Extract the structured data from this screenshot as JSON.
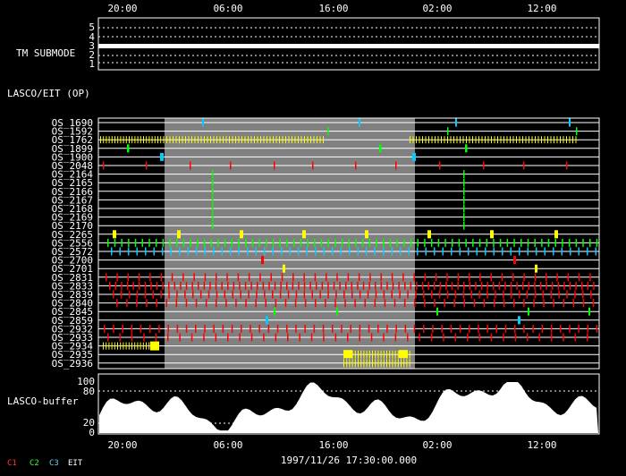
{
  "time_axis": {
    "top_ticks": [
      "20:00",
      "06:00",
      "16:00",
      "02:00",
      "12:00"
    ],
    "bottom_ticks": [
      "20:00",
      "06:00",
      "16:00",
      "02:00",
      "12:00"
    ],
    "timestamp": "1997/11/26 17:30:00.000"
  },
  "submode_panel": {
    "label": "TM SUBMODE",
    "ticks": [
      "5",
      "4",
      "3",
      "2",
      "1"
    ]
  },
  "lasco_panel": {
    "title": "LASCO/EIT (OP)",
    "rows": [
      "OS_1690",
      "OS_1592",
      "OS_1762",
      "OS_1899",
      "OS_1900",
      "OS_2048",
      "OS_2164",
      "OS_2165",
      "OS_2166",
      "OS_2167",
      "OS_2168",
      "OS_2169",
      "OS_2170",
      "OS_2265",
      "OS_2556",
      "OS_2572",
      "OS_2700",
      "OS_2701",
      "OS_2831",
      "OS_2833",
      "OS_2839",
      "OS_2840",
      "OS_2845",
      "OS_2859",
      "OS_2932",
      "OS_2933",
      "OS_2934",
      "OS_2935",
      "OS_2936"
    ]
  },
  "buffer_panel": {
    "label": "LASCO-buffer",
    "ticks": [
      "100",
      "80",
      "20",
      "0"
    ]
  },
  "legend": [
    {
      "label": "C1",
      "color": "#ff3333"
    },
    {
      "label": "C2",
      "color": "#33ff33"
    },
    {
      "label": "C3",
      "color": "#66ccff"
    },
    {
      "label": "EIT",
      "color": "#ffffff"
    }
  ],
  "colors": {
    "background": "#000000",
    "shade": "#808080",
    "line": "#ffffff",
    "yellow": "#ffff00",
    "red": "#ff0000",
    "green": "#00ff00",
    "cyan": "#00ccff"
  }
}
